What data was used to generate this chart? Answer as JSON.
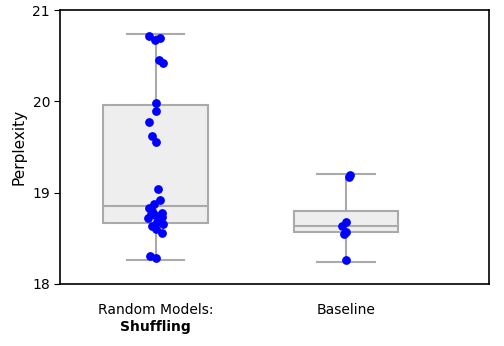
{
  "random_data": [
    20.72,
    20.7,
    20.68,
    20.45,
    20.42,
    19.98,
    19.9,
    19.78,
    19.62,
    19.55,
    19.04,
    18.92,
    18.87,
    18.83,
    18.8,
    18.78,
    18.77,
    18.75,
    18.73,
    18.72,
    18.68,
    18.65,
    18.63,
    18.6,
    18.56,
    18.3,
    18.28
  ],
  "baseline_data": [
    19.19,
    19.17,
    18.68,
    18.63,
    18.57,
    18.55,
    18.26
  ],
  "random_box": {
    "q1": 18.67,
    "median": 18.85,
    "q3": 19.96,
    "whisker_low": 18.26,
    "whisker_high": 20.74
  },
  "baseline_box": {
    "q1": 18.57,
    "median": 18.63,
    "q3": 18.8,
    "whisker_low": 18.24,
    "whisker_high": 19.2
  },
  "ylim": [
    18,
    21
  ],
  "yticks": [
    18,
    19,
    20,
    21
  ],
  "ylabel": "Perplexity",
  "box_facecolor": "#eeeeee",
  "box_edgecolor": "#aaaaaa",
  "dot_color": "blue",
  "dot_size": 28,
  "figsize": [
    5.04,
    3.46
  ],
  "dpi": 100
}
